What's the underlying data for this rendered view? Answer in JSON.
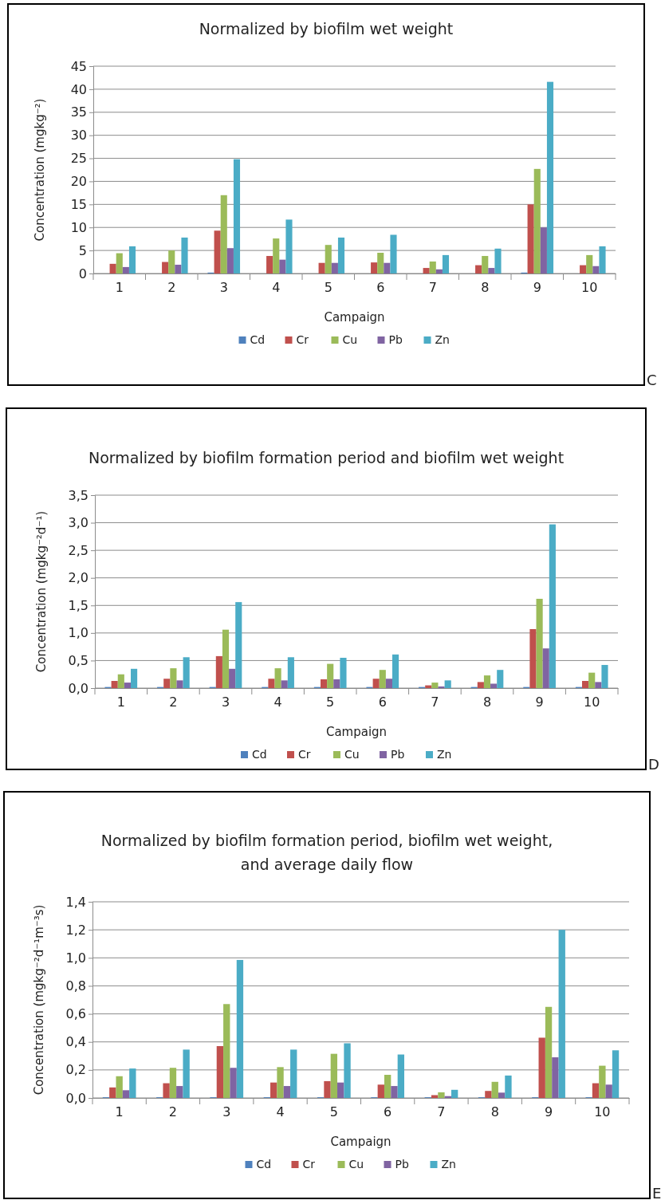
{
  "chart_data": [
    {
      "type": "bar",
      "title": "Normalized by biofilm wet weight",
      "xlabel": "Campaign",
      "ylabel": "Concentration (mgkg⁻²)",
      "categories": [
        "1",
        "2",
        "3",
        "4",
        "5",
        "6",
        "7",
        "8",
        "9",
        "10"
      ],
      "series": [
        {
          "name": "Cd",
          "color": "#4f81bd",
          "values": [
            null,
            null,
            0.2,
            null,
            null,
            null,
            null,
            null,
            0.2,
            null
          ]
        },
        {
          "name": "Cr",
          "color": "#c0504d",
          "values": [
            2.1,
            2.5,
            9.3,
            3.8,
            2.3,
            2.4,
            1.2,
            1.8,
            15,
            1.8
          ]
        },
        {
          "name": "Cu",
          "color": "#9bbb59",
          "values": [
            4.4,
            5.0,
            17,
            7.6,
            6.2,
            4.5,
            2.6,
            3.8,
            22.7,
            4.0
          ]
        },
        {
          "name": "Pb",
          "color": "#8064a2",
          "values": [
            1.4,
            1.9,
            5.5,
            3.0,
            2.3,
            2.3,
            0.9,
            1.2,
            10.0,
            1.6
          ]
        },
        {
          "name": "Zn",
          "color": "#4bacc6",
          "values": [
            5.9,
            7.8,
            24.8,
            11.7,
            7.8,
            8.4,
            4.0,
            5.4,
            41.6,
            5.9
          ]
        }
      ],
      "ylim": [
        0,
        45
      ],
      "yticks": [
        0,
        5,
        10,
        15,
        20,
        25,
        30,
        35,
        40,
        45
      ],
      "grid": "y",
      "legend": "bottom",
      "annotations": [
        "C"
      ]
    },
    {
      "type": "bar",
      "title": "Normalized by biofilm formation period and biofilm wet weight",
      "xlabel": "Campaign",
      "ylabel": "Concentration (mgkg⁻²d⁻¹)",
      "categories": [
        "1",
        "2",
        "3",
        "4",
        "5",
        "6",
        "7",
        "8",
        "9",
        "10"
      ],
      "series": [
        {
          "name": "Cd",
          "color": "#4f81bd",
          "values": [
            0.02,
            0.02,
            0.02,
            0.02,
            0.02,
            0.02,
            0.02,
            0.02,
            0.02,
            0.02
          ]
        },
        {
          "name": "Cr",
          "color": "#c0504d",
          "values": [
            0.13,
            0.17,
            0.58,
            0.17,
            0.16,
            0.17,
            0.05,
            0.11,
            1.07,
            0.13
          ]
        },
        {
          "name": "Cu",
          "color": "#9bbb59",
          "values": [
            0.25,
            0.36,
            1.06,
            0.36,
            0.44,
            0.33,
            0.1,
            0.23,
            1.62,
            0.28
          ]
        },
        {
          "name": "Pb",
          "color": "#8064a2",
          "values": [
            0.1,
            0.14,
            0.35,
            0.14,
            0.16,
            0.17,
            0.03,
            0.08,
            0.72,
            0.11
          ]
        },
        {
          "name": "Zn",
          "color": "#4bacc6",
          "values": [
            0.35,
            0.56,
            1.56,
            0.56,
            0.55,
            0.61,
            0.14,
            0.33,
            2.97,
            0.42
          ]
        }
      ],
      "ylim": [
        0,
        3.5
      ],
      "yticks": [
        {
          "value": 0,
          "label": "0,0"
        },
        {
          "value": 0.5,
          "label": "0,5"
        },
        {
          "value": 1,
          "label": "1,0"
        },
        {
          "value": 1.5,
          "label": "1,5"
        },
        {
          "value": 2,
          "label": "2,0"
        },
        {
          "value": 2.5,
          "label": "2,5"
        },
        {
          "value": 3,
          "label": "3,0"
        },
        {
          "value": 3.5,
          "label": "3,5"
        }
      ],
      "grid": "y",
      "legend": "bottom",
      "annotations": [
        "D"
      ]
    },
    {
      "type": "bar",
      "title": "Normalized by biofilm formation period, biofilm wet weight, and average daily flow",
      "xlabel": "Campaign",
      "ylabel": "Concentration (mgkg⁻²d⁻¹m⁻³s)",
      "categories": [
        "1",
        "2",
        "3",
        "4",
        "5",
        "6",
        "7",
        "8",
        "9",
        "10"
      ],
      "series": [
        {
          "name": "Cd",
          "color": "#4f81bd",
          "values": [
            0.005,
            0.005,
            0.005,
            0.005,
            0.005,
            0.005,
            0.005,
            0.005,
            0.005,
            0.005
          ]
        },
        {
          "name": "Cr",
          "color": "#c0504d",
          "values": [
            0.075,
            0.105,
            0.37,
            0.11,
            0.12,
            0.095,
            0.02,
            0.05,
            0.43,
            0.105
          ]
        },
        {
          "name": "Cu",
          "color": "#9bbb59",
          "values": [
            0.155,
            0.215,
            0.67,
            0.22,
            0.315,
            0.165,
            0.04,
            0.115,
            0.65,
            0.23
          ]
        },
        {
          "name": "Pb",
          "color": "#8064a2",
          "values": [
            0.055,
            0.085,
            0.215,
            0.085,
            0.11,
            0.085,
            0.013,
            0.038,
            0.29,
            0.095
          ]
        },
        {
          "name": "Zn",
          "color": "#4bacc6",
          "values": [
            0.21,
            0.345,
            0.985,
            0.345,
            0.39,
            0.31,
            0.058,
            0.16,
            1.2,
            0.34
          ]
        }
      ],
      "ylim": [
        0,
        1.4
      ],
      "yticks": [
        {
          "value": 0,
          "label": "0,0"
        },
        {
          "value": 0.2,
          "label": "0,2"
        },
        {
          "value": 0.4,
          "label": "0,4"
        },
        {
          "value": 0.6,
          "label": "0,6"
        },
        {
          "value": 0.8,
          "label": "0,8"
        },
        {
          "value": 1,
          "label": "1,0"
        },
        {
          "value": 1.2,
          "label": "1,2"
        },
        {
          "value": 1.4,
          "label": "1,4"
        }
      ],
      "grid": "y",
      "legend": "bottom",
      "annotations": [
        "E"
      ]
    }
  ]
}
